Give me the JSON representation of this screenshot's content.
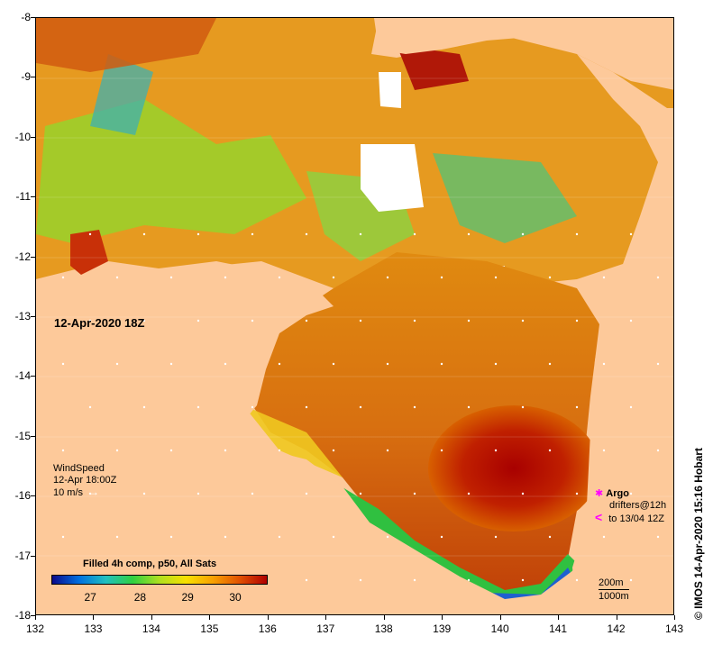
{
  "map": {
    "date_label": "12-Apr-2020 18Z",
    "lat_ticks": [
      "-8",
      "-9",
      "-10",
      "-11",
      "-12",
      "-13",
      "-14",
      "-15",
      "-16",
      "-17",
      "-18"
    ],
    "lon_ticks": [
      "132",
      "133",
      "134",
      "135",
      "136",
      "137",
      "138",
      "139",
      "140",
      "141",
      "142",
      "143"
    ],
    "land_color": "#fdc99a"
  },
  "wind": {
    "title": "WindSpeed",
    "time": "12-Apr 18:00Z",
    "scale": "10 m/s"
  },
  "colorbar": {
    "title": "Filled 4h comp, p50, All Sats",
    "ticks": [
      "27",
      "28",
      "29",
      "30"
    ],
    "colors": [
      "#0a0a8c",
      "#0070e0",
      "#20c0c0",
      "#30d040",
      "#b0e020",
      "#f8e000",
      "#f8a000",
      "#e05000",
      "#b00000"
    ]
  },
  "legend": {
    "argo_label": "Argo",
    "drifters_label": "drifters@12h",
    "drifters_range": "to 13/04 12Z",
    "argo_symbol": "✱",
    "drifter_symbol": "<"
  },
  "scale": {
    "depth1": "200m",
    "depth2": "1000m"
  },
  "credit": "© IMOS 14-Apr-2020 15:16 Hobart"
}
